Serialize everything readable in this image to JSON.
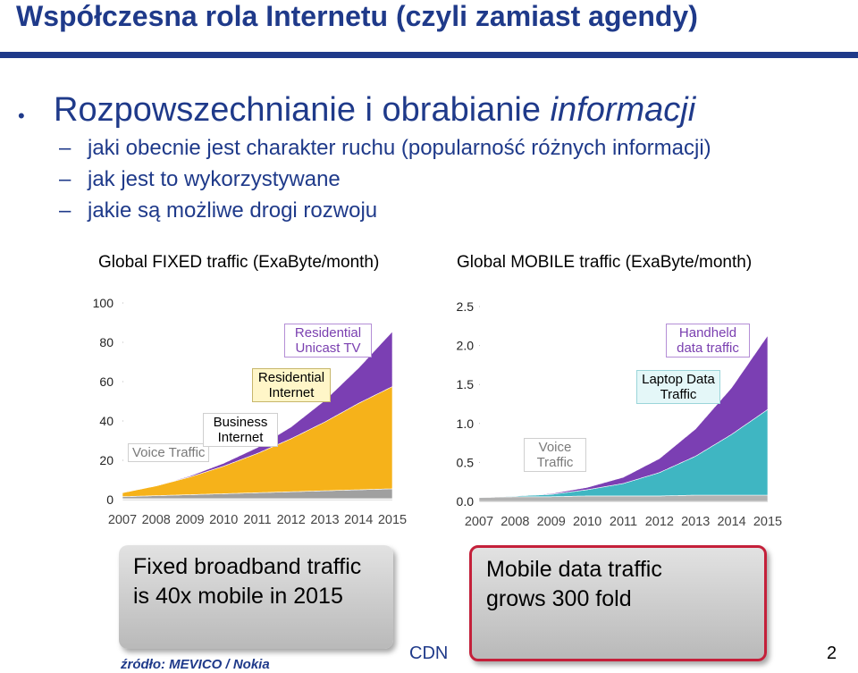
{
  "slide": {
    "title": "Współczesna rola Internetu (czyli zamiast agendy)",
    "heading_plain": "Rozpowszechnianie i obrabianie ",
    "heading_italic": "informacji",
    "bullet": "•",
    "subpoints": [
      "jaki obecnie jest charakter ruchu (popularność różnych informacji)",
      "jak jest to wykorzystywane",
      "jakie są możliwe drogi rozwoju"
    ],
    "dash": "–",
    "callout_fixed": [
      "Fixed broadband traffic",
      "is 40x mobile in 2015"
    ],
    "callout_mobile": [
      "Mobile data traffic",
      "grows 300 fold"
    ],
    "source": "źródło:  MEVICO / Nokia",
    "footer_center": "CDN",
    "page_number": "2"
  },
  "chart_data": [
    {
      "type": "area",
      "title": "Global FIXED traffic (ExaByte/month)",
      "x": [
        "2007",
        "2008",
        "2009",
        "2010",
        "2011",
        "2012",
        "2013",
        "2014",
        "2015"
      ],
      "ylim": [
        0,
        100
      ],
      "yticks": [
        "100",
        "80",
        "60",
        "40",
        "20",
        "0"
      ],
      "series": [
        {
          "name": "Voice Traffic",
          "color": "#e8e8e8",
          "values": [
            0.5,
            0.5,
            0.5,
            0.5,
            0.5,
            0.5,
            0.5,
            0.5,
            0.5
          ]
        },
        {
          "name": "Business Internet",
          "color": "#a0a0a0",
          "values": [
            1,
            1.5,
            2,
            2.5,
            3,
            3.5,
            4,
            4.5,
            5
          ]
        },
        {
          "name": "Residential Internet",
          "color": "#f6b21a",
          "values": [
            2,
            5,
            9,
            14,
            20,
            27,
            35,
            44,
            52
          ]
        },
        {
          "name": "Residential Unicast TV",
          "color": "#7b3fb3",
          "values": [
            0,
            0,
            0.5,
            1.5,
            3,
            6,
            11,
            18,
            28
          ]
        }
      ]
    },
    {
      "type": "area",
      "title": "Global MOBILE traffic (ExaByte/month)",
      "x": [
        "2007",
        "2008",
        "2009",
        "2010",
        "2011",
        "2012",
        "2013",
        "2014",
        "2015"
      ],
      "ylim": [
        0,
        2.5
      ],
      "yticks": [
        "2.5",
        "2.0",
        "1.5",
        "1.0",
        "0.5",
        "0.0"
      ],
      "series": [
        {
          "name": "Voice Traffic",
          "color": "#b3b3b3",
          "values": [
            0.05,
            0.06,
            0.06,
            0.07,
            0.07,
            0.07,
            0.08,
            0.08,
            0.08
          ]
        },
        {
          "name": "Laptop Data Traffic",
          "color": "#3fb6c2",
          "values": [
            0,
            0.01,
            0.03,
            0.08,
            0.16,
            0.3,
            0.5,
            0.78,
            1.1
          ]
        },
        {
          "name": "Handheld data traffic",
          "color": "#7b3fb3",
          "values": [
            0,
            0,
            0.01,
            0.03,
            0.08,
            0.18,
            0.35,
            0.6,
            0.95
          ]
        }
      ]
    }
  ]
}
